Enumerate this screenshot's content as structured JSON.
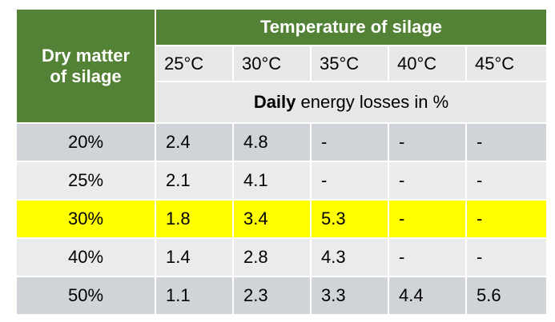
{
  "header": {
    "corner_line1": "Dry matter",
    "corner_line2": "of silage",
    "temperature_title": "Temperature of silage",
    "temperatures": [
      "25°C",
      "30°C",
      "35°C",
      "40°C",
      "45°C"
    ],
    "losses_bold": "Daily",
    "losses_rest": " energy losses in %"
  },
  "rows": [
    {
      "dry_matter": "20%",
      "values": [
        "2.4",
        "4.8",
        "-",
        "-",
        "-"
      ]
    },
    {
      "dry_matter": "25%",
      "values": [
        "2.1",
        "4.1",
        "-",
        "-",
        "-"
      ]
    },
    {
      "dry_matter": "30%",
      "values": [
        "1.8",
        "3.4",
        "5.3",
        "-",
        "-"
      ]
    },
    {
      "dry_matter": "40%",
      "values": [
        "1.4",
        "2.8",
        "4.3",
        "-",
        "-"
      ]
    },
    {
      "dry_matter": "50%",
      "values": [
        "1.1",
        "2.3",
        "3.3",
        "4.4",
        "5.6"
      ]
    }
  ],
  "colors": {
    "header_green": "#538135",
    "highlight_yellow": "#ffff00",
    "row_dark": "#d0d3d8",
    "row_light": "#e9ebed",
    "subheader": "#e7e7e7"
  }
}
